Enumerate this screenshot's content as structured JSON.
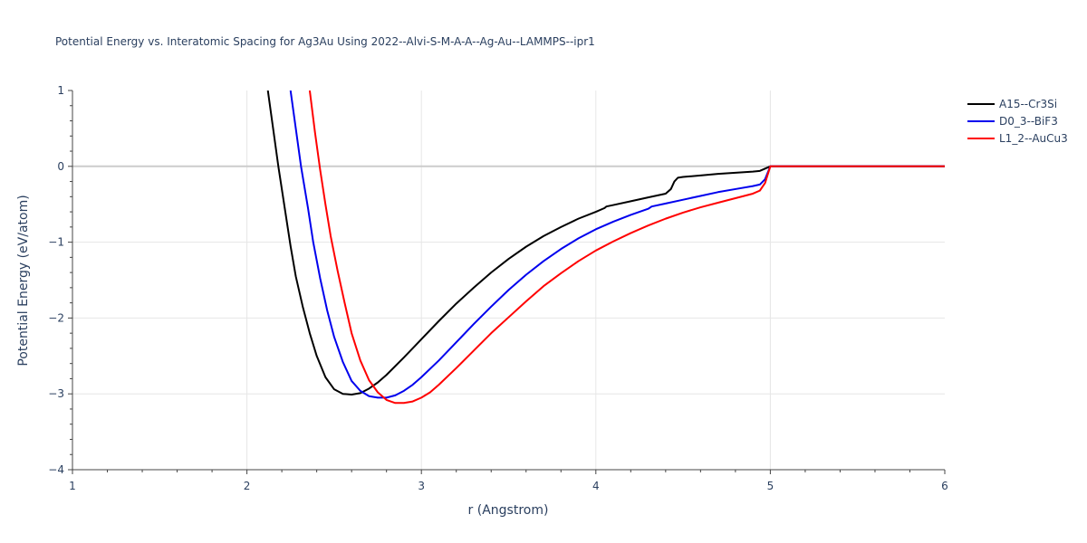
{
  "chart_data": {
    "type": "line",
    "title": "Potential Energy vs. Interatomic Spacing for Ag3Au Using 2022--Alvi-S-M-A-A--Ag-Au--LAMMPS--ipr1",
    "xlabel": "r (Angstrom)",
    "ylabel": "Potential Energy (eV/atom)",
    "xlim": [
      1,
      6
    ],
    "ylim": [
      -4,
      1
    ],
    "x_ticks": [
      1,
      2,
      3,
      4,
      5,
      6
    ],
    "y_ticks": [
      1,
      0,
      -1,
      -2,
      -3,
      -4
    ],
    "x_tick_labels": [
      "1",
      "2",
      "3",
      "4",
      "5",
      "6"
    ],
    "y_tick_labels": [
      "1",
      "0",
      "−1",
      "−2",
      "−3",
      "−4"
    ],
    "grid": true,
    "legend_position": "top-right",
    "series": [
      {
        "name": "A15--Cr3Si",
        "color": "#000000",
        "x": [
          2.12,
          2.15,
          2.18,
          2.22,
          2.25,
          2.28,
          2.32,
          2.36,
          2.4,
          2.45,
          2.5,
          2.55,
          2.6,
          2.65,
          2.7,
          2.75,
          2.8,
          2.9,
          3.0,
          3.1,
          3.2,
          3.3,
          3.4,
          3.5,
          3.6,
          3.7,
          3.8,
          3.9,
          4.0,
          4.05,
          4.06,
          4.1,
          4.2,
          4.3,
          4.4,
          4.43,
          4.45,
          4.47,
          4.5,
          4.6,
          4.7,
          4.8,
          4.9,
          4.94,
          4.97,
          5.0,
          5.5,
          6.0
        ],
        "y": [
          1.0,
          0.5,
          0.0,
          -0.6,
          -1.05,
          -1.45,
          -1.85,
          -2.2,
          -2.5,
          -2.78,
          -2.94,
          -3.0,
          -3.01,
          -2.99,
          -2.93,
          -2.85,
          -2.75,
          -2.52,
          -2.28,
          -2.04,
          -1.81,
          -1.6,
          -1.4,
          -1.22,
          -1.06,
          -0.92,
          -0.8,
          -0.69,
          -0.6,
          -0.55,
          -0.53,
          -0.51,
          -0.46,
          -0.41,
          -0.36,
          -0.3,
          -0.2,
          -0.15,
          -0.14,
          -0.12,
          -0.1,
          -0.085,
          -0.07,
          -0.06,
          -0.03,
          0.0,
          0.0,
          0.0
        ]
      },
      {
        "name": "D0_3--BiF3",
        "color": "#0000ee",
        "x": [
          2.25,
          2.28,
          2.31,
          2.35,
          2.38,
          2.42,
          2.46,
          2.5,
          2.55,
          2.6,
          2.65,
          2.7,
          2.75,
          2.8,
          2.85,
          2.9,
          2.95,
          3.0,
          3.1,
          3.2,
          3.3,
          3.4,
          3.5,
          3.6,
          3.7,
          3.8,
          3.9,
          4.0,
          4.1,
          4.2,
          4.3,
          4.32,
          4.4,
          4.5,
          4.6,
          4.7,
          4.8,
          4.9,
          4.94,
          4.97,
          5.0,
          5.5,
          6.0
        ],
        "y": [
          1.0,
          0.5,
          0.0,
          -0.55,
          -1.0,
          -1.48,
          -1.9,
          -2.25,
          -2.58,
          -2.83,
          -2.96,
          -3.03,
          -3.05,
          -3.05,
          -3.02,
          -2.96,
          -2.88,
          -2.78,
          -2.56,
          -2.32,
          -2.08,
          -1.85,
          -1.63,
          -1.43,
          -1.25,
          -1.09,
          -0.95,
          -0.83,
          -0.73,
          -0.64,
          -0.56,
          -0.53,
          -0.49,
          -0.44,
          -0.39,
          -0.34,
          -0.3,
          -0.26,
          -0.24,
          -0.17,
          0.0,
          0.0,
          0.0
        ]
      },
      {
        "name": "L1_2--AuCu3",
        "color": "#ff0000",
        "x": [
          2.36,
          2.39,
          2.42,
          2.45,
          2.48,
          2.52,
          2.56,
          2.6,
          2.65,
          2.7,
          2.75,
          2.8,
          2.85,
          2.9,
          2.95,
          3.0,
          3.05,
          3.1,
          3.2,
          3.3,
          3.4,
          3.5,
          3.6,
          3.7,
          3.8,
          3.9,
          4.0,
          4.1,
          4.2,
          4.3,
          4.4,
          4.5,
          4.6,
          4.7,
          4.8,
          4.9,
          4.94,
          4.97,
          5.0,
          5.5,
          6.0
        ],
        "y": [
          1.0,
          0.45,
          -0.05,
          -0.5,
          -0.92,
          -1.38,
          -1.8,
          -2.2,
          -2.56,
          -2.82,
          -2.98,
          -3.08,
          -3.12,
          -3.12,
          -3.1,
          -3.05,
          -2.98,
          -2.88,
          -2.66,
          -2.43,
          -2.2,
          -1.99,
          -1.78,
          -1.58,
          -1.41,
          -1.25,
          -1.11,
          -0.99,
          -0.88,
          -0.78,
          -0.69,
          -0.61,
          -0.54,
          -0.48,
          -0.42,
          -0.36,
          -0.32,
          -0.22,
          0.0,
          0.0,
          0.0
        ]
      }
    ]
  }
}
